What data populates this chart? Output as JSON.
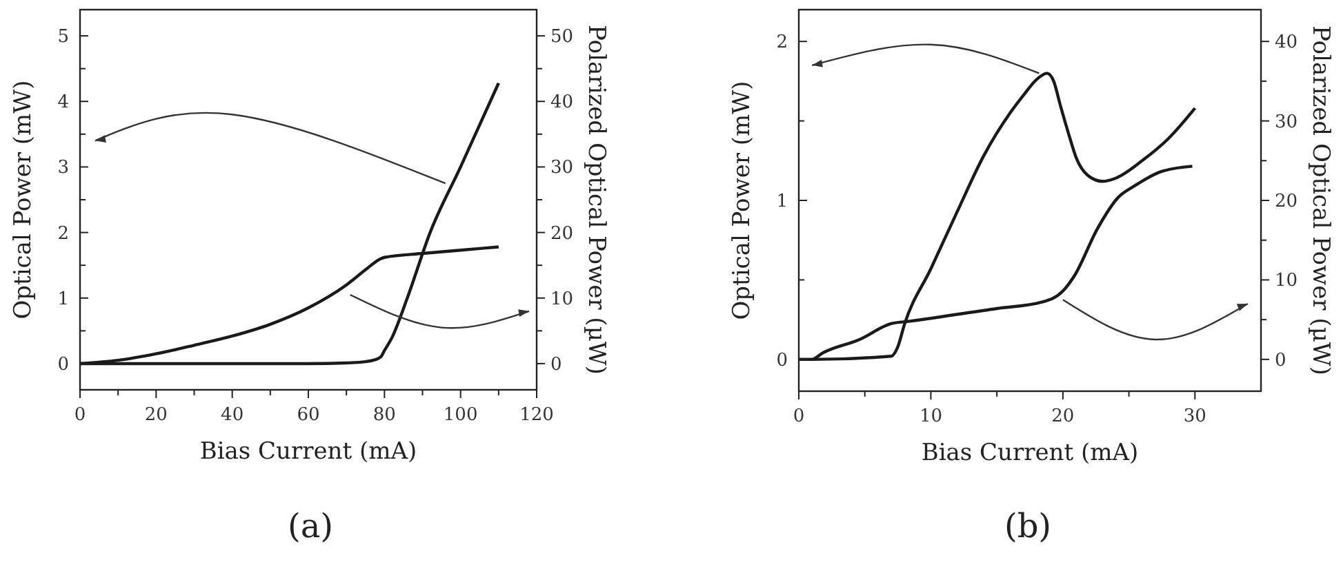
{
  "chart_data": [
    {
      "type": "line",
      "title": "(a)",
      "xlabel": "Bias Current (mA)",
      "ylabel": "Optical Power (mW)",
      "y2label": "Polarized Optical Power (µW)",
      "xlim": [
        0,
        120
      ],
      "ylim": [
        -0.4,
        5.4
      ],
      "y2lim": [
        -4,
        54
      ],
      "xticks": [
        0,
        {
          "value": 10,
          "label": null
        },
        20,
        {
          "value": 30,
          "label": null
        },
        40,
        {
          "value": 50,
          "label": null
        },
        60,
        {
          "value": 70,
          "label": null
        },
        80,
        {
          "value": 90,
          "label": null
        },
        100,
        {
          "value": 110,
          "label": null
        },
        120
      ],
      "yticks": [
        0,
        {
          "value": 0.5,
          "label": null
        },
        1,
        {
          "value": 1.5,
          "label": null
        },
        2,
        {
          "value": 2.5,
          "label": null
        },
        3,
        {
          "value": 3.5,
          "label": null
        },
        4,
        {
          "value": 4.5,
          "label": null
        },
        5
      ],
      "y2ticks": [
        0,
        {
          "value": 5,
          "label": null
        },
        10,
        {
          "value": 15,
          "label": null
        },
        20,
        {
          "value": 25,
          "label": null
        },
        30,
        {
          "value": 35,
          "label": null
        },
        40,
        {
          "value": 45,
          "label": null
        },
        50
      ],
      "grid": false,
      "line_style": "solid",
      "series": [
        {
          "color": "#1a1a1a",
          "x": [
            0,
            20,
            40,
            60,
            70,
            75,
            77,
            79,
            80,
            82,
            86,
            92,
            100,
            110
          ],
          "values": [
            0,
            0,
            0,
            0,
            0.01,
            0.03,
            0.05,
            0.1,
            0.2,
            0.4,
            1,
            2,
            3,
            4.28
          ]
        },
        {
          "color": "#1a1a1a",
          "axis": "y2",
          "x": [
            0,
            10,
            20,
            30,
            40,
            50,
            60,
            70,
            75,
            79,
            80,
            90,
            100,
            110
          ],
          "values": [
            0,
            0.5,
            1.5,
            2.8,
            4.2,
            6,
            8.5,
            12,
            14.3,
            16,
            16.2,
            16.8,
            17.3,
            17.8
          ]
        }
      ]
    },
    {
      "type": "line",
      "title": "(b)",
      "xlabel": "Bias Current (mA)",
      "ylabel": "Optical Power (mW)",
      "y2label": "Polarized Optical Power (µW)",
      "xlim": [
        0,
        35
      ],
      "ylim": [
        -0.2,
        2.2
      ],
      "y2lim": [
        -4,
        44
      ],
      "xticks": [
        0,
        {
          "value": 5,
          "label": null
        },
        10,
        {
          "value": 15,
          "label": null
        },
        20,
        {
          "value": 25,
          "label": null
        },
        30
      ],
      "yticks": [
        0,
        {
          "value": 0.5,
          "label": null
        },
        1,
        {
          "value": 1.5,
          "label": null
        },
        2
      ],
      "y2ticks": [
        0,
        {
          "value": 5,
          "label": null
        },
        10,
        {
          "value": 15,
          "label": null
        },
        20,
        {
          "value": 25,
          "label": null
        },
        30,
        {
          "value": 35,
          "label": null
        },
        40
      ],
      "grid": false,
      "line_style": "solid",
      "series": [
        {
          "color": "#1a1a1a",
          "x": [
            0,
            1,
            7,
            7.5,
            8,
            10,
            12,
            14,
            16,
            17,
            18,
            18.8,
            19.3,
            19.8,
            20.5,
            21,
            22,
            23,
            24,
            26,
            28,
            30
          ],
          "values": [
            0,
            0,
            0.02,
            0.08,
            0.22,
            0.57,
            0.93,
            1.28,
            1.55,
            1.66,
            1.76,
            1.8,
            1.75,
            1.6,
            1.4,
            1.27,
            1.15,
            1.12,
            1.14,
            1.25,
            1.39,
            1.58
          ]
        },
        {
          "color": "#1a1a1a",
          "axis": "y2",
          "x": [
            0,
            1,
            1.8,
            4.6,
            7,
            8.4,
            15,
            18.4,
            20,
            20.9,
            22.6,
            24.2,
            25.4,
            27.4,
            29.8
          ],
          "values": [
            0,
            0,
            0.8,
            2.5,
            4.5,
            4.8,
            6.4,
            7.2,
            8.6,
            10.6,
            16.4,
            20.4,
            21.8,
            23.6,
            24.3
          ]
        }
      ]
    }
  ]
}
